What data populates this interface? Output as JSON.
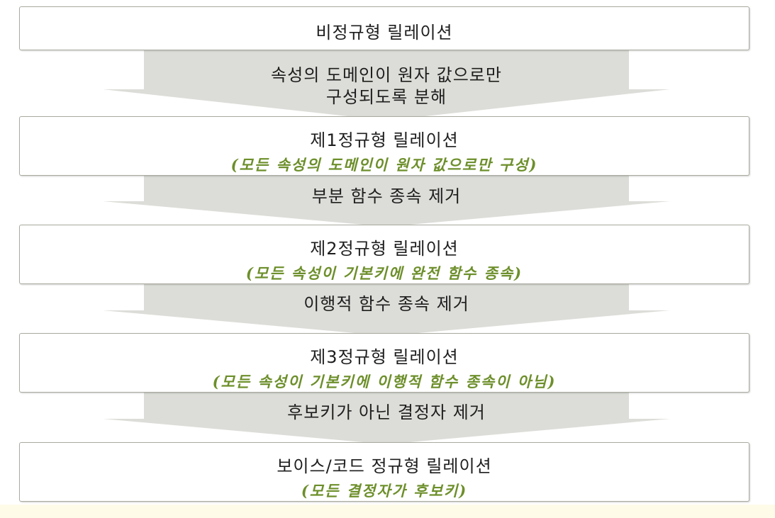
{
  "diagram": {
    "stages": [
      {
        "title": "비정규형 릴레이션",
        "note": ""
      },
      {
        "title": "제1정규형 릴레이션",
        "note": "(모든 속성의 도메인이 원자 값으로만 구성)"
      },
      {
        "title": "제2정규형 릴레이션",
        "note": "(모든 속성이 기본키에 완전 함수 종속)"
      },
      {
        "title": "제3정규형 릴레이션",
        "note": "(모든 속성이 기본키에 이행적 함수 종속이 아님)"
      },
      {
        "title": "보이스/코드 정규형 릴레이션",
        "note": "(모든 결정자가 후보키)"
      }
    ],
    "transitions": [
      {
        "lines": [
          "속성의 도메인이 원자 값으로만",
          "구성되도록 분해"
        ]
      },
      {
        "lines": [
          "부분 함수 종속 제거"
        ]
      },
      {
        "lines": [
          "이행적 함수 종속 제거"
        ]
      },
      {
        "lines": [
          "후보키가 아닌 결정자 제거"
        ]
      }
    ],
    "colors": {
      "arrow_fill": "#dcddd8",
      "box_border": "#a9ab9f",
      "note_text": "#6d8f2b",
      "bottom_band": "#fefbe9"
    }
  }
}
